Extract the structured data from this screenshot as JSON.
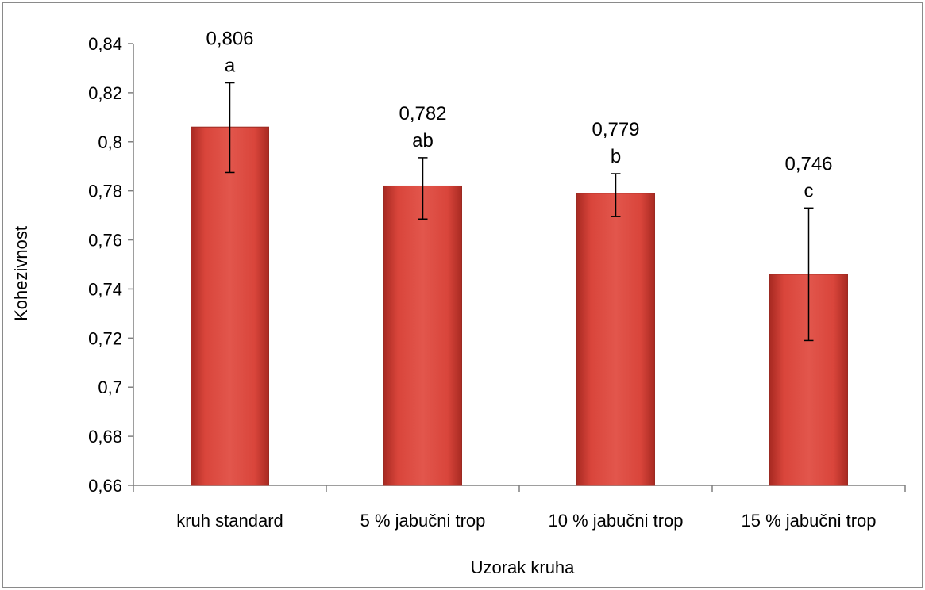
{
  "chart_data": {
    "type": "bar",
    "title": "",
    "xlabel": "Uzorak kruha",
    "ylabel": "Kohezivnost",
    "ylim": [
      0.66,
      0.84
    ],
    "yticks": [
      0.66,
      0.68,
      0.7,
      0.72,
      0.74,
      0.76,
      0.78,
      0.8,
      0.82,
      0.84
    ],
    "ytick_labels": [
      "0,66",
      "0,68",
      "0,7",
      "0,72",
      "0,74",
      "0,76",
      "0,78",
      "0,8",
      "0,82",
      "0,84"
    ],
    "categories": [
      "kruh standard",
      "5 % jabučni trop",
      "10 % jabučni trop",
      "15 % jabučni trop"
    ],
    "values": [
      0.806,
      0.782,
      0.779,
      0.746
    ],
    "value_labels": [
      "0,806",
      "0,782",
      "0,779",
      "0,746"
    ],
    "significance_letters": [
      "a",
      "ab",
      "b",
      "c"
    ],
    "error_bars": [
      {
        "low": 0.7875,
        "high": 0.824
      },
      {
        "low": 0.7685,
        "high": 0.7935
      },
      {
        "low": 0.7695,
        "high": 0.787
      },
      {
        "low": 0.719,
        "high": 0.773
      }
    ],
    "bar_color": "#c0392b",
    "grid": false,
    "legend": "none"
  }
}
